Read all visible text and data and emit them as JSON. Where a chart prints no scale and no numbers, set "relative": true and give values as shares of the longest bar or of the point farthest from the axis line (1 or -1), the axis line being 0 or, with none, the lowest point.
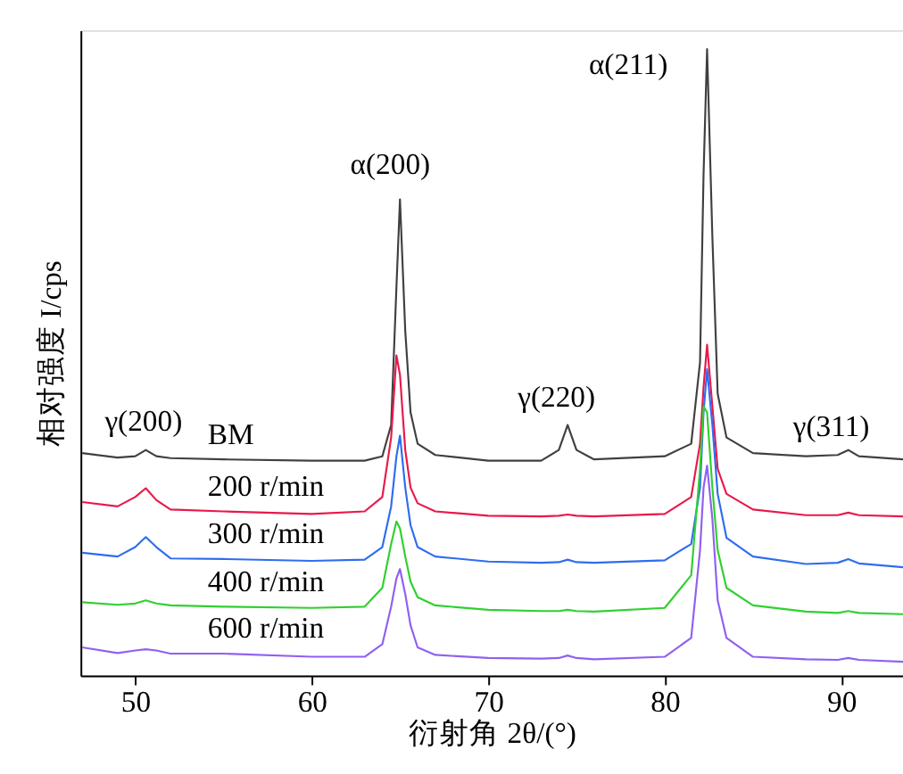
{
  "chart_data": {
    "type": "line",
    "relative": true,
    "xlabel": "衍射角 2θ/(°)",
    "ylabel": "相对强度 I/cps",
    "x": [
      47,
      49,
      50,
      50.6,
      51.2,
      52,
      55,
      60,
      63,
      64,
      64.5,
      64.8,
      65,
      65.3,
      65.6,
      66,
      67,
      70,
      73,
      74,
      74.5,
      75,
      76,
      80,
      81.5,
      82,
      82.2,
      82.4,
      82.7,
      83,
      83.5,
      85,
      88,
      89.8,
      90.4,
      91,
      93.5
    ],
    "xlim": [
      46.9,
      93.5
    ],
    "xticks": [
      50,
      60,
      70,
      80,
      90
    ],
    "tick_labels": "x",
    "grid": false,
    "marker": "none",
    "line_style": "solid",
    "series": [
      {
        "name": "BM",
        "color": "#404040",
        "values": [
          0.355,
          0.348,
          0.35,
          0.36,
          0.35,
          0.347,
          0.345,
          0.343,
          0.343,
          0.35,
          0.4,
          0.62,
          0.76,
          0.55,
          0.42,
          0.37,
          0.352,
          0.343,
          0.343,
          0.36,
          0.4,
          0.36,
          0.345,
          0.35,
          0.37,
          0.5,
          0.8,
          1.0,
          0.7,
          0.45,
          0.38,
          0.355,
          0.35,
          0.352,
          0.36,
          0.35,
          0.345
        ]
      },
      {
        "name": "200 r/min",
        "color": "#e8194a",
        "values": [
          0.277,
          0.27,
          0.285,
          0.299,
          0.28,
          0.265,
          0.262,
          0.258,
          0.262,
          0.285,
          0.38,
          0.511,
          0.48,
          0.36,
          0.3,
          0.275,
          0.262,
          0.255,
          0.254,
          0.255,
          0.257,
          0.255,
          0.254,
          0.258,
          0.285,
          0.37,
          0.46,
          0.528,
          0.43,
          0.33,
          0.29,
          0.265,
          0.256,
          0.256,
          0.26,
          0.256,
          0.254
        ]
      },
      {
        "name": "300 r/min",
        "color": "#2f6cf0",
        "values": [
          0.196,
          0.19,
          0.205,
          0.221,
          0.205,
          0.187,
          0.186,
          0.183,
          0.185,
          0.205,
          0.27,
          0.35,
          0.383,
          0.3,
          0.24,
          0.205,
          0.19,
          0.182,
          0.18,
          0.181,
          0.185,
          0.181,
          0.18,
          0.184,
          0.21,
          0.3,
          0.42,
          0.489,
          0.4,
          0.29,
          0.22,
          0.19,
          0.178,
          0.18,
          0.186,
          0.179,
          0.173
        ]
      },
      {
        "name": "400 r/min",
        "color": "#30d030",
        "values": [
          0.117,
          0.113,
          0.115,
          0.12,
          0.115,
          0.112,
          0.11,
          0.108,
          0.11,
          0.14,
          0.21,
          0.246,
          0.235,
          0.19,
          0.15,
          0.125,
          0.112,
          0.105,
          0.103,
          0.103,
          0.105,
          0.103,
          0.102,
          0.108,
          0.16,
          0.33,
          0.43,
          0.42,
          0.3,
          0.2,
          0.14,
          0.112,
          0.102,
          0.1,
          0.103,
          0.1,
          0.098
        ]
      },
      {
        "name": "600 r/min",
        "color": "#9060f0",
        "values": [
          0.045,
          0.036,
          0.04,
          0.042,
          0.04,
          0.035,
          0.035,
          0.03,
          0.03,
          0.05,
          0.11,
          0.155,
          0.17,
          0.13,
          0.08,
          0.045,
          0.033,
          0.028,
          0.027,
          0.028,
          0.032,
          0.028,
          0.026,
          0.03,
          0.06,
          0.2,
          0.3,
          0.335,
          0.25,
          0.12,
          0.06,
          0.03,
          0.026,
          0.025,
          0.028,
          0.025,
          0.022
        ]
      }
    ],
    "annotations": [
      "γ(200)",
      "α(200)",
      "γ(220)",
      "α(211)",
      "γ(311)"
    ]
  }
}
